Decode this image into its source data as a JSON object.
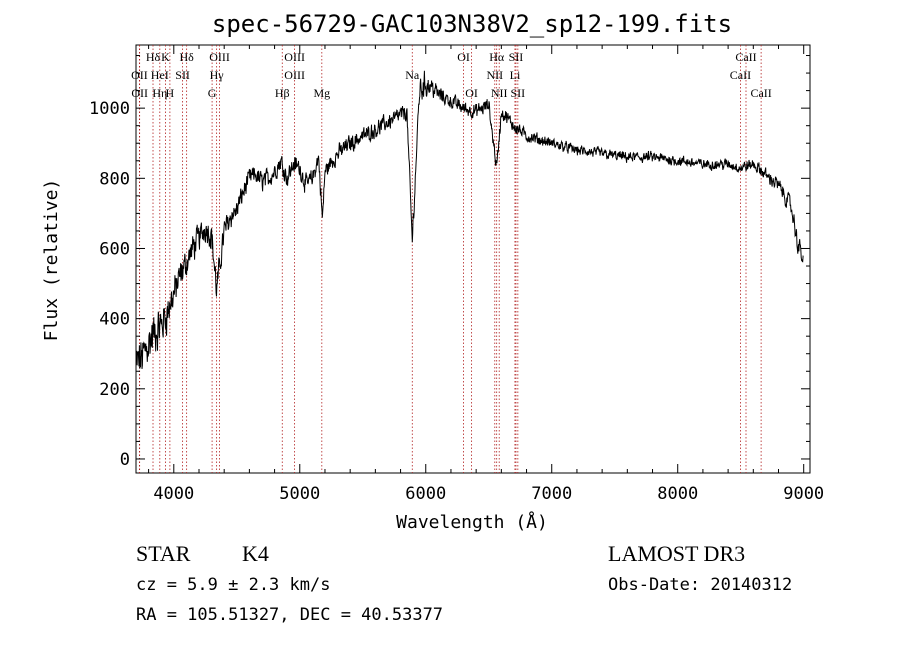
{
  "chart_data": {
    "type": "line",
    "title": "spec-56729-GAC103N38V2_sp12-199.fits",
    "xlabel": "Wavelength (Å)",
    "ylabel": "Flux (relative)",
    "xlim": [
      3700,
      9050
    ],
    "ylim": [
      -40,
      1180
    ],
    "xticks": [
      4000,
      5000,
      6000,
      7000,
      8000,
      9000
    ],
    "xtick_labels": [
      "4000",
      "5000",
      "6000",
      "7000",
      "8000",
      "9000"
    ],
    "yticks": [
      0,
      200,
      400,
      600,
      800,
      1000
    ],
    "ytick_labels": [
      "0",
      "200",
      "400",
      "600",
      "800",
      "1000"
    ],
    "grid": false,
    "line_color": "#000000",
    "marker_color": "#b22222",
    "spectrum_anchors": {
      "x": [
        3700,
        3750,
        3800,
        3850,
        3900,
        3950,
        4000,
        4050,
        4100,
        4150,
        4200,
        4250,
        4300,
        4340,
        4400,
        4450,
        4500,
        4550,
        4600,
        4650,
        4700,
        4750,
        4800,
        4850,
        4900,
        4950,
        5000,
        5050,
        5100,
        5150,
        5180,
        5200,
        5300,
        5400,
        5500,
        5600,
        5700,
        5800,
        5850,
        5893,
        5950,
        6000,
        6050,
        6100,
        6200,
        6300,
        6400,
        6500,
        6563,
        6600,
        6700,
        6800,
        7000,
        7200,
        7400,
        7600,
        7800,
        8000,
        8200,
        8400,
        8500,
        8600,
        8700,
        8800,
        8900,
        8950,
        9000
      ],
      "y": [
        270,
        290,
        330,
        360,
        380,
        420,
        470,
        520,
        560,
        600,
        630,
        660,
        640,
        480,
        650,
        690,
        710,
        760,
        800,
        810,
        790,
        800,
        820,
        850,
        800,
        840,
        830,
        780,
        800,
        860,
        680,
        820,
        870,
        900,
        920,
        940,
        960,
        980,
        990,
        620,
        1050,
        1070,
        1060,
        1040,
        1020,
        1000,
        990,
        1010,
        830,
        990,
        950,
        920,
        900,
        880,
        870,
        860,
        860,
        850,
        840,
        840,
        830,
        840,
        810,
        780,
        720,
        620,
        560
      ],
      "noise": [
        90,
        90,
        90,
        90,
        85,
        80,
        70,
        65,
        60,
        60,
        55,
        55,
        60,
        60,
        50,
        45,
        45,
        42,
        40,
        40,
        40,
        40,
        40,
        40,
        40,
        40,
        40,
        40,
        38,
        38,
        38,
        35,
        35,
        35,
        35,
        35,
        35,
        35,
        35,
        35,
        55,
        55,
        40,
        35,
        30,
        30,
        30,
        30,
        30,
        30,
        28,
        25,
        22,
        22,
        22,
        22,
        22,
        22,
        22,
        22,
        22,
        25,
        25,
        30,
        35,
        40,
        40
      ]
    },
    "lines": [
      {
        "name": "Hδ",
        "x": 3835,
        "row": 0
      },
      {
        "name": "OII",
        "x": 3727,
        "row": 1
      },
      {
        "name": "OII",
        "x": 3729,
        "row": 2
      },
      {
        "name": "HeI",
        "x": 3889,
        "row": 1
      },
      {
        "name": "Hη",
        "x": 3889,
        "row": 2
      },
      {
        "name": "K",
        "x": 3934,
        "row": 0
      },
      {
        "name": "SII",
        "x": 4070,
        "row": 1
      },
      {
        "name": "H",
        "x": 3969,
        "row": 2
      },
      {
        "name": "Hδ",
        "x": 4102,
        "row": 0
      },
      {
        "name": "OIII",
        "x": 4363,
        "row": 0
      },
      {
        "name": "Hγ",
        "x": 4340,
        "row": 1
      },
      {
        "name": "G",
        "x": 4304,
        "row": 2
      },
      {
        "name": "OIII",
        "x": 4959,
        "row": 0
      },
      {
        "name": "OIII",
        "x": 4959,
        "row": 1
      },
      {
        "name": "Hβ",
        "x": 4861,
        "row": 2
      },
      {
        "name": "Mg",
        "x": 5175,
        "row": 2
      },
      {
        "name": "Na",
        "x": 5893,
        "row": 1
      },
      {
        "name": "OI",
        "x": 6300,
        "row": 0
      },
      {
        "name": "OI",
        "x": 6364,
        "row": 2
      },
      {
        "name": "Hα",
        "x": 6563,
        "row": 0
      },
      {
        "name": "SII",
        "x": 6716,
        "row": 0
      },
      {
        "name": "NII",
        "x": 6548,
        "row": 1
      },
      {
        "name": "Li",
        "x": 6708,
        "row": 1
      },
      {
        "name": "NII",
        "x": 6583,
        "row": 2
      },
      {
        "name": "SII",
        "x": 6731,
        "row": 2
      },
      {
        "name": "CaII",
        "x": 8542,
        "row": 0
      },
      {
        "name": "CaII",
        "x": 8498,
        "row": 1
      },
      {
        "name": "CaII",
        "x": 8662,
        "row": 2
      }
    ]
  },
  "info": {
    "class": "STAR",
    "subclass": "K4",
    "survey": "LAMOST DR3",
    "cz": "cz = 5.9 ± 2.3 km/s",
    "obs_date": "Obs-Date: 20140312",
    "coords": "RA = 105.51327, DEC =  40.53377"
  }
}
